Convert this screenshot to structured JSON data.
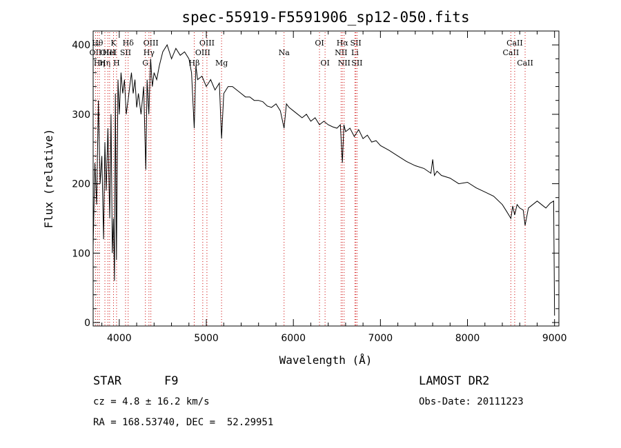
{
  "chart_data": {
    "type": "line",
    "title": "spec-55919-F5591906_sp12-050.fits",
    "xlabel": "Wavelength (Å)",
    "ylabel": "Flux (relative)",
    "xlim": [
      3700,
      9050
    ],
    "ylim": [
      -5,
      420
    ],
    "x_ticks": [
      4000,
      5000,
      6000,
      7000,
      8000,
      9000
    ],
    "y_ticks": [
      0,
      100,
      200,
      300,
      400
    ],
    "grid": false,
    "line_color": "#000000",
    "marker_color": "#cc0000",
    "series": [
      {
        "x": [
          3700,
          3720,
          3740,
          3760,
          3780,
          3800,
          3820,
          3835,
          3850,
          3870,
          3890,
          3905,
          3920,
          3933,
          3945,
          3955,
          3968,
          3985,
          4000,
          4020,
          4040,
          4060,
          4080,
          4101,
          4120,
          4140,
          4160,
          4180,
          4200,
          4220,
          4250,
          4280,
          4305,
          4320,
          4340,
          4360,
          4380,
          4400,
          4430,
          4460,
          4500,
          4550,
          4600,
          4650,
          4700,
          4750,
          4800,
          4830,
          4861,
          4880,
          4900,
          4950,
          5000,
          5050,
          5100,
          5150,
          5175,
          5200,
          5250,
          5300,
          5350,
          5400,
          5450,
          5500,
          5550,
          5600,
          5650,
          5700,
          5750,
          5800,
          5850,
          5893,
          5920,
          5950,
          6000,
          6050,
          6100,
          6150,
          6200,
          6250,
          6300,
          6350,
          6400,
          6450,
          6500,
          6540,
          6563,
          6580,
          6600,
          6650,
          6700,
          6750,
          6800,
          6850,
          6900,
          6950,
          7000,
          7100,
          7200,
          7300,
          7400,
          7500,
          7580,
          7600,
          7620,
          7650,
          7700,
          7800,
          7900,
          8000,
          8100,
          8200,
          8300,
          8400,
          8450,
          8498,
          8520,
          8542,
          8570,
          8600,
          8640,
          8662,
          8700,
          8750,
          8800,
          8850,
          8900,
          8950,
          8990,
          9000
        ],
        "y": [
          110,
          230,
          170,
          320,
          200,
          240,
          120,
          260,
          190,
          280,
          150,
          300,
          100,
          150,
          60,
          330,
          90,
          350,
          300,
          360,
          330,
          350,
          300,
          320,
          340,
          360,
          330,
          350,
          310,
          330,
          300,
          340,
          220,
          350,
          300,
          380,
          340,
          360,
          350,
          370,
          390,
          400,
          380,
          395,
          385,
          390,
          380,
          360,
          280,
          370,
          350,
          355,
          340,
          350,
          335,
          345,
          265,
          330,
          340,
          340,
          335,
          330,
          325,
          325,
          320,
          320,
          318,
          312,
          310,
          315,
          305,
          280,
          315,
          310,
          305,
          300,
          295,
          300,
          290,
          295,
          285,
          290,
          285,
          282,
          280,
          285,
          230,
          285,
          275,
          280,
          268,
          278,
          265,
          270,
          260,
          262,
          255,
          248,
          240,
          232,
          226,
          222,
          215,
          235,
          212,
          218,
          212,
          208,
          200,
          202,
          194,
          188,
          182,
          170,
          160,
          150,
          168,
          155,
          170,
          165,
          162,
          140,
          165,
          170,
          175,
          170,
          165,
          172,
          175,
          10
        ]
      }
    ],
    "line_markers": [
      {
        "x": 3727,
        "label": "OII",
        "row": 2
      },
      {
        "x": 3750,
        "label": "Hθ",
        "row": 1
      },
      {
        "x": 3771,
        "label": "Hη",
        "row": 3
      },
      {
        "x": 3835,
        "label": "Hη",
        "row": 3
      },
      {
        "x": 3869,
        "label": "OIII",
        "row": 2
      },
      {
        "x": 3889,
        "label": "HeI",
        "row": 2
      },
      {
        "x": 3934,
        "label": "K",
        "row": 1
      },
      {
        "x": 3969,
        "label": "H",
        "row": 3
      },
      {
        "x": 4072,
        "label": "SII",
        "row": 2
      },
      {
        "x": 4102,
        "label": "Hδ",
        "row": 1
      },
      {
        "x": 4300,
        "label": "G",
        "row": 3
      },
      {
        "x": 4341,
        "label": "Hγ",
        "row": 2
      },
      {
        "x": 4363,
        "label": "OIII",
        "row": 1
      },
      {
        "x": 4861,
        "label": "Hβ",
        "row": 3
      },
      {
        "x": 4959,
        "label": "OIII",
        "row": 2
      },
      {
        "x": 5007,
        "label": "OIII",
        "row": 1
      },
      {
        "x": 5175,
        "label": "Mg",
        "row": 3
      },
      {
        "x": 5893,
        "label": "Na",
        "row": 2
      },
      {
        "x": 6300,
        "label": "OI",
        "row": 1
      },
      {
        "x": 6364,
        "label": "OI",
        "row": 3
      },
      {
        "x": 6548,
        "label": "NII",
        "row": 2
      },
      {
        "x": 6563,
        "label": "Hα",
        "row": 1
      },
      {
        "x": 6583,
        "label": "NII",
        "row": 3
      },
      {
        "x": 6707,
        "label": "Li",
        "row": 2
      },
      {
        "x": 6717,
        "label": "SII",
        "row": 1
      },
      {
        "x": 6731,
        "label": "SII",
        "row": 3
      },
      {
        "x": 8498,
        "label": "CaII",
        "row": 2
      },
      {
        "x": 8542,
        "label": "CaII",
        "row": 1
      },
      {
        "x": 8662,
        "label": "CaII",
        "row": 3
      }
    ]
  },
  "info": {
    "object_class": "STAR",
    "subclass": "F9",
    "survey": "LAMOST DR2",
    "redshift": "cz = 4.8 ± 16.2 km/s",
    "obs_date": "Obs-Date: 20111223",
    "coords": "RA = 168.53740, DEC =  52.29951"
  }
}
